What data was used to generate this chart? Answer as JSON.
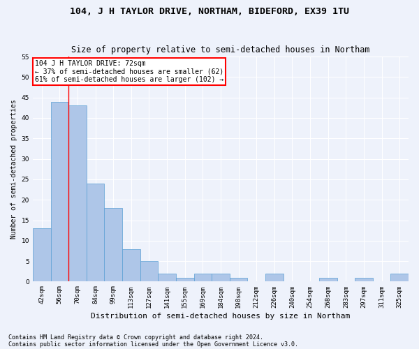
{
  "title": "104, J H TAYLOR DRIVE, NORTHAM, BIDEFORD, EX39 1TU",
  "subtitle": "Size of property relative to semi-detached houses in Northam",
  "xlabel": "Distribution of semi-detached houses by size in Northam",
  "ylabel": "Number of semi-detached properties",
  "categories": [
    "42sqm",
    "56sqm",
    "70sqm",
    "84sqm",
    "99sqm",
    "113sqm",
    "127sqm",
    "141sqm",
    "155sqm",
    "169sqm",
    "184sqm",
    "198sqm",
    "212sqm",
    "226sqm",
    "240sqm",
    "254sqm",
    "268sqm",
    "283sqm",
    "297sqm",
    "311sqm",
    "325sqm"
  ],
  "values": [
    13,
    44,
    43,
    24,
    18,
    8,
    5,
    2,
    1,
    2,
    2,
    1,
    0,
    2,
    0,
    0,
    1,
    0,
    1,
    0,
    2
  ],
  "bar_color": "#aec6e8",
  "bar_edge_color": "#5a9fd4",
  "vline_x": 1.5,
  "property_line_label": "104 J H TAYLOR DRIVE: 72sqm",
  "annotation_line1": "← 37% of semi-detached houses are smaller (62)",
  "annotation_line2": "61% of semi-detached houses are larger (102) →",
  "annotation_box_color": "white",
  "annotation_box_edge": "red",
  "vline_color": "red",
  "ylim": [
    0,
    55
  ],
  "yticks": [
    0,
    5,
    10,
    15,
    20,
    25,
    30,
    35,
    40,
    45,
    50,
    55
  ],
  "footnote1": "Contains HM Land Registry data © Crown copyright and database right 2024.",
  "footnote2": "Contains public sector information licensed under the Open Government Licence v3.0.",
  "background_color": "#eef2fb",
  "grid_color": "#ffffff",
  "title_fontsize": 9.5,
  "subtitle_fontsize": 8.5,
  "xlabel_fontsize": 8,
  "ylabel_fontsize": 7,
  "tick_fontsize": 6.5,
  "annotation_fontsize": 7,
  "footnote_fontsize": 6
}
